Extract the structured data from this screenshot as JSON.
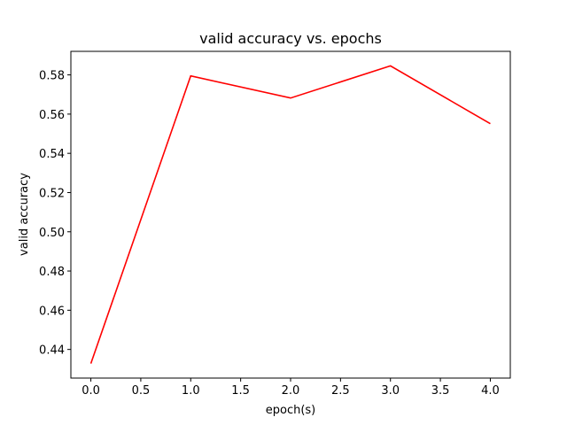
{
  "chart_data": {
    "type": "line",
    "title": "valid accuracy vs. epochs",
    "xlabel": "epoch(s)",
    "ylabel": "valid accuracy",
    "x": [
      0,
      1,
      2,
      3,
      4
    ],
    "series": [
      {
        "values": [
          0.4328,
          0.5795,
          0.5682,
          0.5846,
          0.5551
        ],
        "color": "#ff0000"
      }
    ],
    "xlim": [
      -0.2,
      4.2
    ],
    "ylim": [
      0.4254,
      0.592
    ],
    "xticks": [
      0.0,
      0.5,
      1.0,
      1.5,
      2.0,
      2.5,
      3.0,
      3.5,
      4.0
    ],
    "xtick_labels": [
      "0.0",
      "0.5",
      "1.0",
      "1.5",
      "2.0",
      "2.5",
      "3.0",
      "3.5",
      "4.0"
    ],
    "yticks": [
      0.44,
      0.46,
      0.48,
      0.5,
      0.52,
      0.54,
      0.56,
      0.58
    ],
    "ytick_labels": [
      "0.44",
      "0.46",
      "0.48",
      "0.50",
      "0.52",
      "0.54",
      "0.56",
      "0.58"
    ],
    "grid": false,
    "legend": "none"
  }
}
